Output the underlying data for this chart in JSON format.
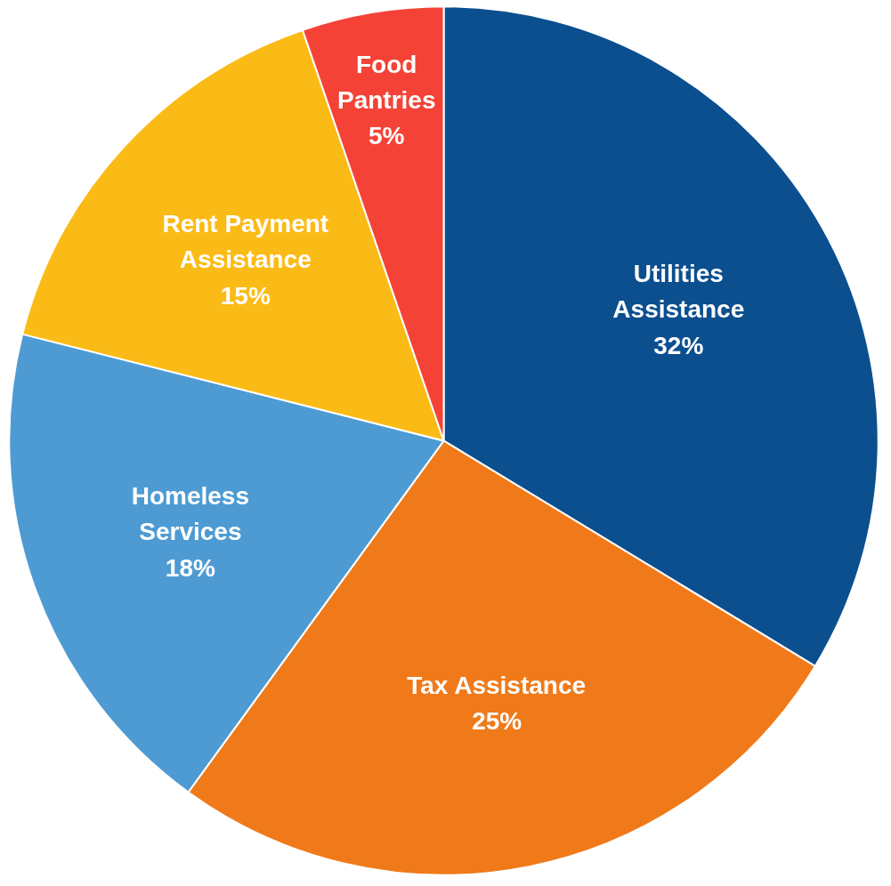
{
  "chart_data": {
    "type": "pie",
    "categories": [
      "Utilities\nAssistance",
      "Tax Assistance",
      "Homeless\nServices",
      "Rent Payment\nAssistance",
      "Food\nPantries"
    ],
    "values": [
      32,
      25,
      18,
      15,
      5
    ],
    "value_labels": [
      "32%",
      "25%",
      "18%",
      "15%",
      "5%"
    ],
    "colors": [
      "#0b4f8f",
      "#f07a1a",
      "#4e9bd3",
      "#fbbb16",
      "#f44336"
    ]
  }
}
